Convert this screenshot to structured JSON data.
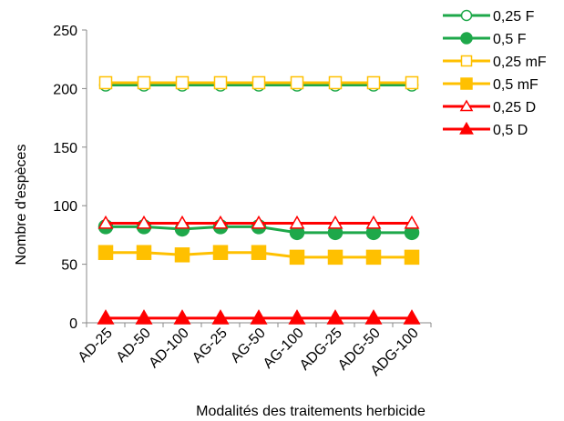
{
  "chart_data": {
    "type": "line",
    "title": "",
    "xlabel": "Modalités des traitements herbicide",
    "ylabel": "Nombre d'espèces",
    "ylim": [
      0,
      250
    ],
    "yticks": [
      0,
      50,
      100,
      150,
      200,
      250
    ],
    "grid": false,
    "legend": "top-right",
    "categories": [
      "AD-25",
      "AD-50",
      "AD-100",
      "AG-25",
      "AG-50",
      "AG-100",
      "ADG-25",
      "ADG-50",
      "ADG-100"
    ],
    "series": [
      {
        "name": "0,25 F",
        "color": "#1ea84a",
        "marker": "circle",
        "filled": false,
        "values": [
          203,
          203,
          203,
          203,
          203,
          203,
          203,
          203,
          203
        ]
      },
      {
        "name": "0,5 F",
        "color": "#1ea84a",
        "marker": "circle",
        "filled": true,
        "values": [
          82,
          82,
          80,
          82,
          82,
          77,
          77,
          77,
          77
        ]
      },
      {
        "name": "0,25 mF",
        "color": "#ffc000",
        "marker": "square",
        "filled": false,
        "values": [
          205,
          205,
          205,
          205,
          205,
          205,
          205,
          205,
          205
        ]
      },
      {
        "name": "0,5 mF",
        "color": "#ffc000",
        "marker": "square",
        "filled": true,
        "values": [
          60,
          60,
          58,
          60,
          60,
          56,
          56,
          56,
          56
        ]
      },
      {
        "name": "0,25 D",
        "color": "#ff0000",
        "marker": "triangle",
        "filled": false,
        "values": [
          85,
          85,
          85,
          85,
          85,
          85,
          85,
          85,
          85
        ]
      },
      {
        "name": "0,5 D",
        "color": "#ff0000",
        "marker": "triangle",
        "filled": true,
        "values": [
          4,
          4,
          4,
          4,
          4,
          4,
          4,
          4,
          4
        ]
      }
    ]
  }
}
